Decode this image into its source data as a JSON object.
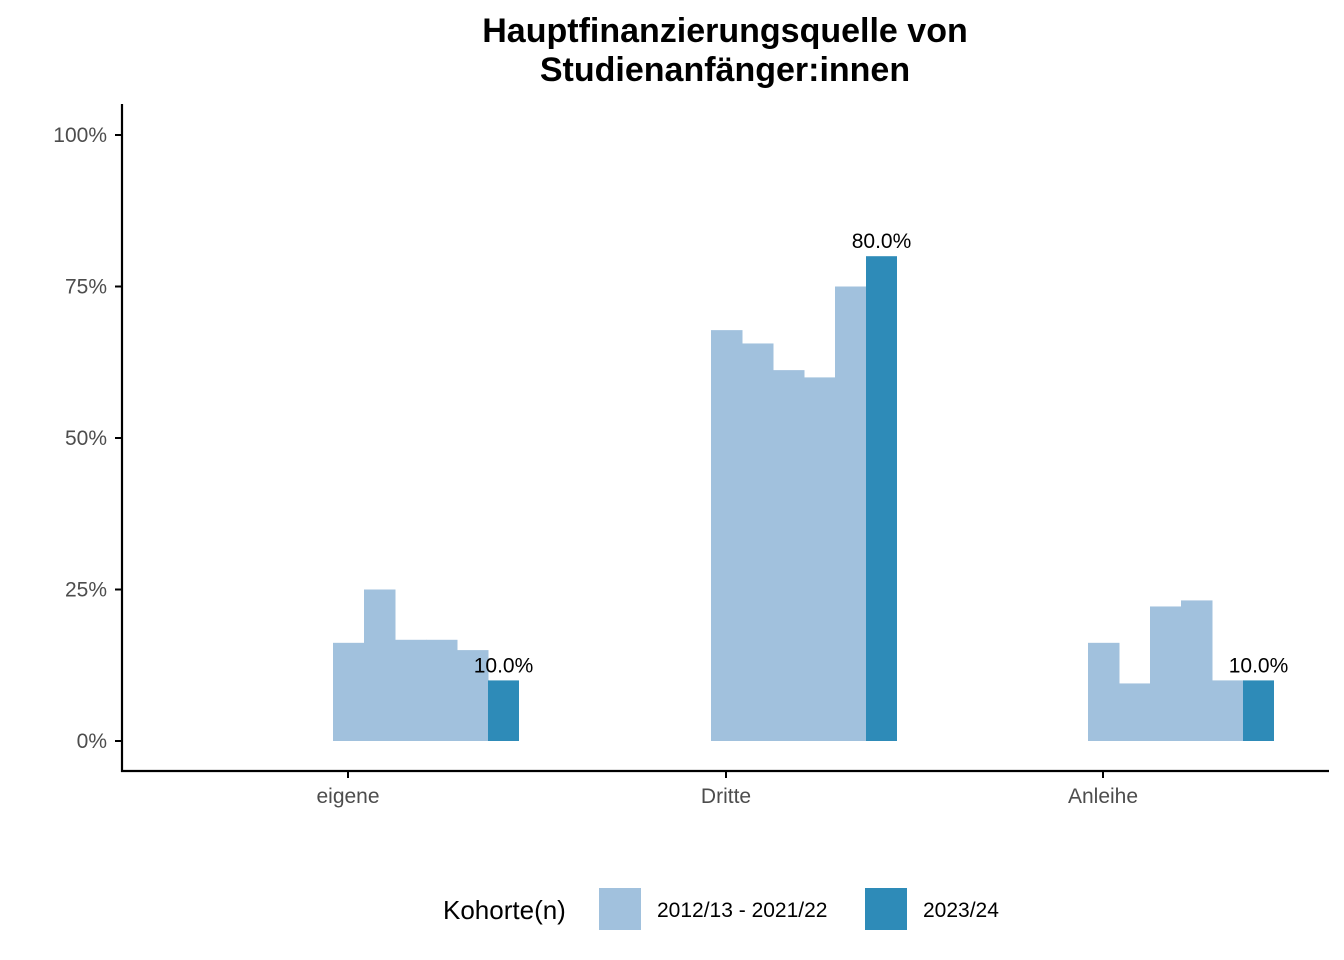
{
  "chart_data": {
    "type": "bar",
    "title_lines": [
      "Hauptfinanzierungsquelle von",
      "Studienanfänger:innen"
    ],
    "xlabel": "",
    "ylabel": "",
    "ylim": [
      0,
      1.05
    ],
    "y_ticks": [
      0,
      0.25,
      0.5,
      0.75,
      1.0
    ],
    "y_tick_labels": [
      "0%",
      "25%",
      "50%",
      "75%",
      "100%"
    ],
    "categories": [
      "eigene",
      "Dritte",
      "Anleihe"
    ],
    "grid": false,
    "legend_position": "bottom",
    "legend_title": "Kohorte(n)",
    "series": [
      {
        "name": "2012/13 - 2021/22",
        "color": "#a1c1dd",
        "values": [
          [
            0.162,
            0.25,
            0.167,
            0.167,
            0.15
          ],
          [
            0.678,
            0.656,
            0.612,
            0.6,
            0.75
          ],
          [
            0.162,
            0.095,
            0.222,
            0.232,
            0.1
          ]
        ]
      },
      {
        "name": "2023/24",
        "color": "#2e8bb8",
        "values": [
          0.1,
          0.8,
          0.1
        ],
        "labels": [
          "10.0%",
          "80.0%",
          "10.0%"
        ]
      }
    ]
  }
}
